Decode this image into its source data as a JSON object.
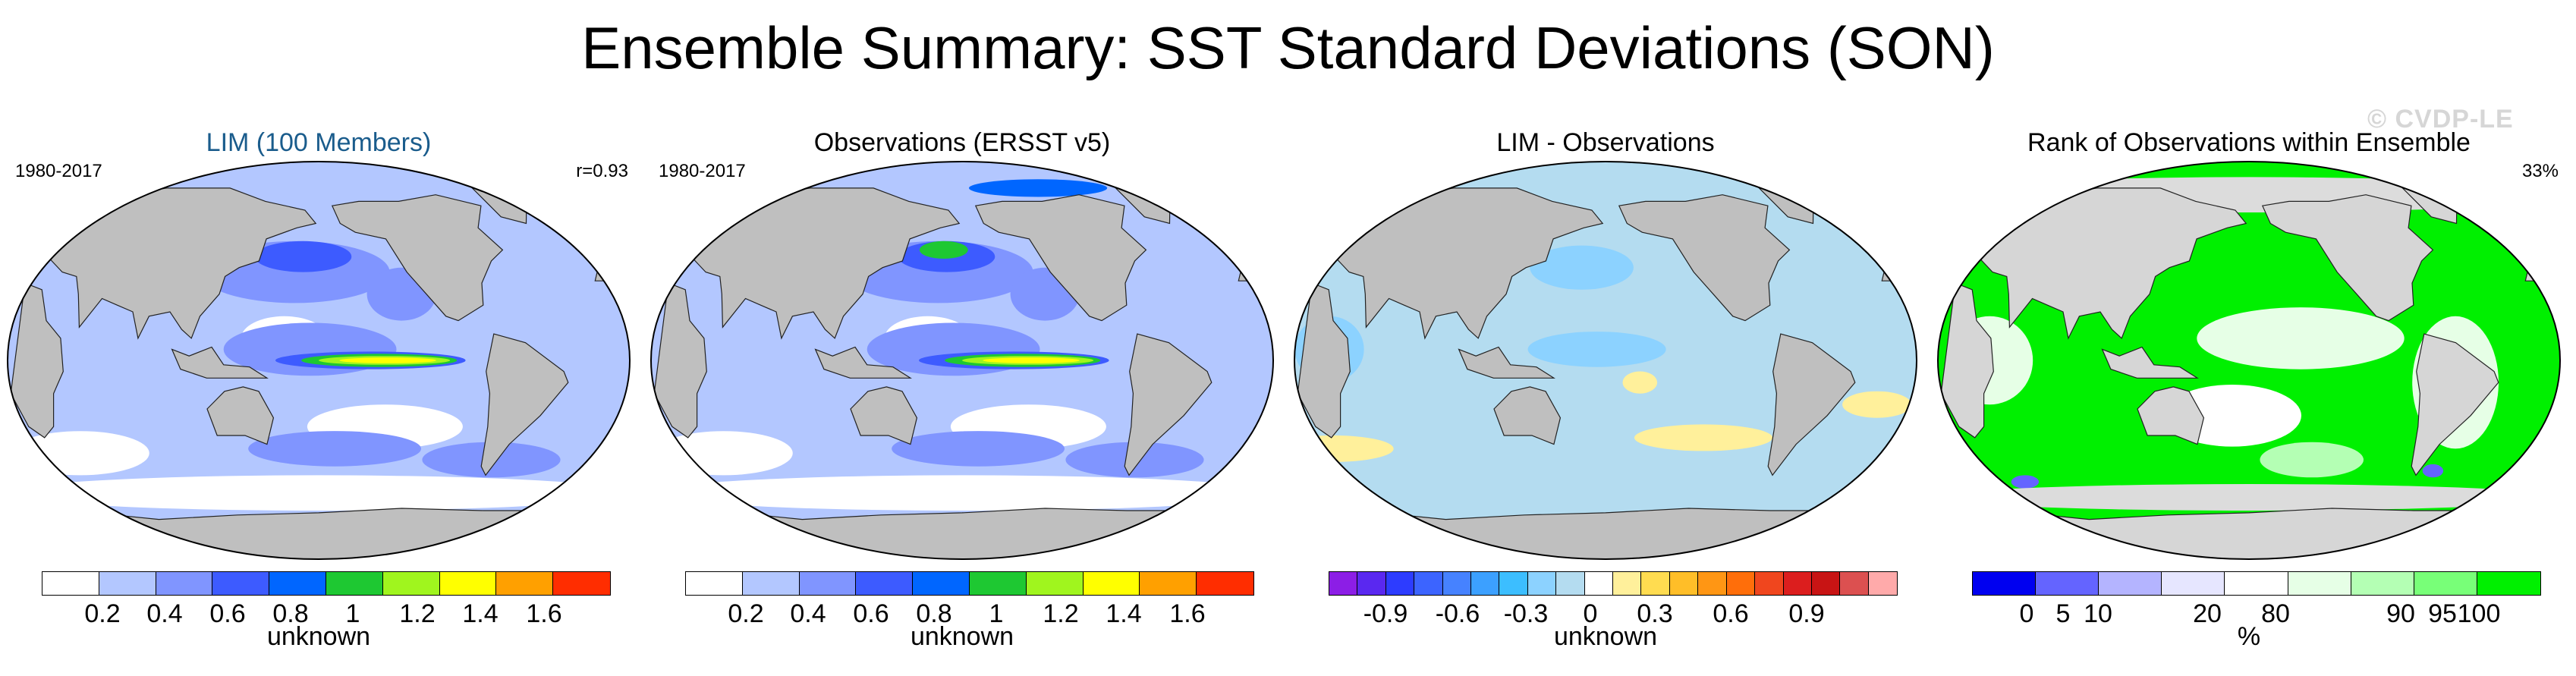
{
  "title": "Ensemble Summary: SST Standard Deviations (SON)",
  "watermark": "© CVDP-LE",
  "panels": [
    {
      "title": "LIM (100 Members)",
      "title_color": "#1a5c8c",
      "left_label": "1980-2017",
      "right_label": "r=0.93",
      "map_style": "sd_lim",
      "colorbar": {
        "colors": [
          "#ffffff",
          "#b3c7ff",
          "#8095ff",
          "#3d5bff",
          "#0066ff",
          "#1ec832",
          "#a0f51e",
          "#ffff00",
          "#ffa000",
          "#ff2d00"
        ],
        "ticks": [
          "0.2",
          "0.4",
          "0.6",
          "0.8",
          "1",
          "1.2",
          "1.4",
          "1.6"
        ],
        "label": "unknown"
      }
    },
    {
      "title": "Observations (ERSST v5)",
      "title_color": "#000000",
      "left_label": "1980-2017",
      "right_label": "",
      "map_style": "sd_obs",
      "colorbar": {
        "colors": [
          "#ffffff",
          "#b3c7ff",
          "#8095ff",
          "#3d5bff",
          "#0066ff",
          "#1ec832",
          "#a0f51e",
          "#ffff00",
          "#ffa000",
          "#ff2d00"
        ],
        "ticks": [
          "0.2",
          "0.4",
          "0.6",
          "0.8",
          "1",
          "1.2",
          "1.4",
          "1.6"
        ],
        "label": "unknown"
      }
    },
    {
      "title": "LIM - Observations",
      "title_color": "#000000",
      "left_label": "",
      "right_label": "",
      "map_style": "diff",
      "colorbar": {
        "colors": [
          "#8c1ee6",
          "#5a28f0",
          "#2d3cff",
          "#3c64ff",
          "#4682ff",
          "#3ca0ff",
          "#3cbeff",
          "#8cd2ff",
          "#b4dcf0",
          "#ffffff",
          "#fff09b",
          "#ffdc50",
          "#ffbe28",
          "#ff9614",
          "#ff6e0a",
          "#f0461e",
          "#dc1e1e",
          "#c81414",
          "#dc5050",
          "#ffaaaa"
        ],
        "ticks": [
          "-0.9",
          "-0.6",
          "-0.3",
          "0",
          "0.3",
          "0.6",
          "0.9"
        ],
        "label": "unknown"
      }
    },
    {
      "title": "Rank of Observations within Ensemble",
      "title_color": "#000000",
      "left_label": "",
      "right_label": "33%",
      "map_style": "rank",
      "colorbar": {
        "colors": [
          "#0000f0",
          "#6464ff",
          "#b4b4ff",
          "#e6e6ff",
          "#ffffff",
          "#e6ffe6",
          "#b4ffb4",
          "#78ff78",
          "#00f000"
        ],
        "ticks": [
          "0",
          "5",
          "10",
          "20",
          "80",
          "90",
          "95",
          "100"
        ],
        "label": "%"
      }
    }
  ]
}
